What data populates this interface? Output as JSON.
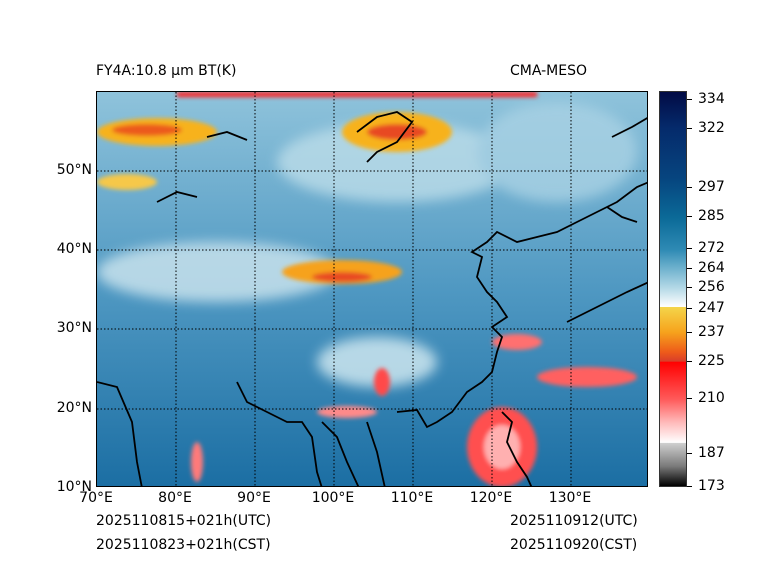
{
  "title_left": "FY4A:10.8 µm BT(K)",
  "title_right": "CMA-MESO",
  "footer": {
    "init_utc": "2025110815+021h(UTC)",
    "init_cst": "2025110823+021h(CST)",
    "valid_utc": "2025110912(UTC)",
    "valid_cst": "2025110920(CST)"
  },
  "map": {
    "lon_range": [
      70,
      140
    ],
    "lat_range": [
      10,
      60
    ],
    "x_ticks": [
      "70°E",
      "80°E",
      "90°E",
      "100°E",
      "110°E",
      "120°E",
      "130°E"
    ],
    "y_ticks": [
      "10°N",
      "20°N",
      "30°N",
      "40°N",
      "50°N"
    ]
  },
  "colorbar": {
    "ticks": [
      "334",
      "322",
      "297",
      "285",
      "272",
      "264",
      "256",
      "247",
      "237",
      "225",
      "210",
      "187",
      "173"
    ]
  }
}
